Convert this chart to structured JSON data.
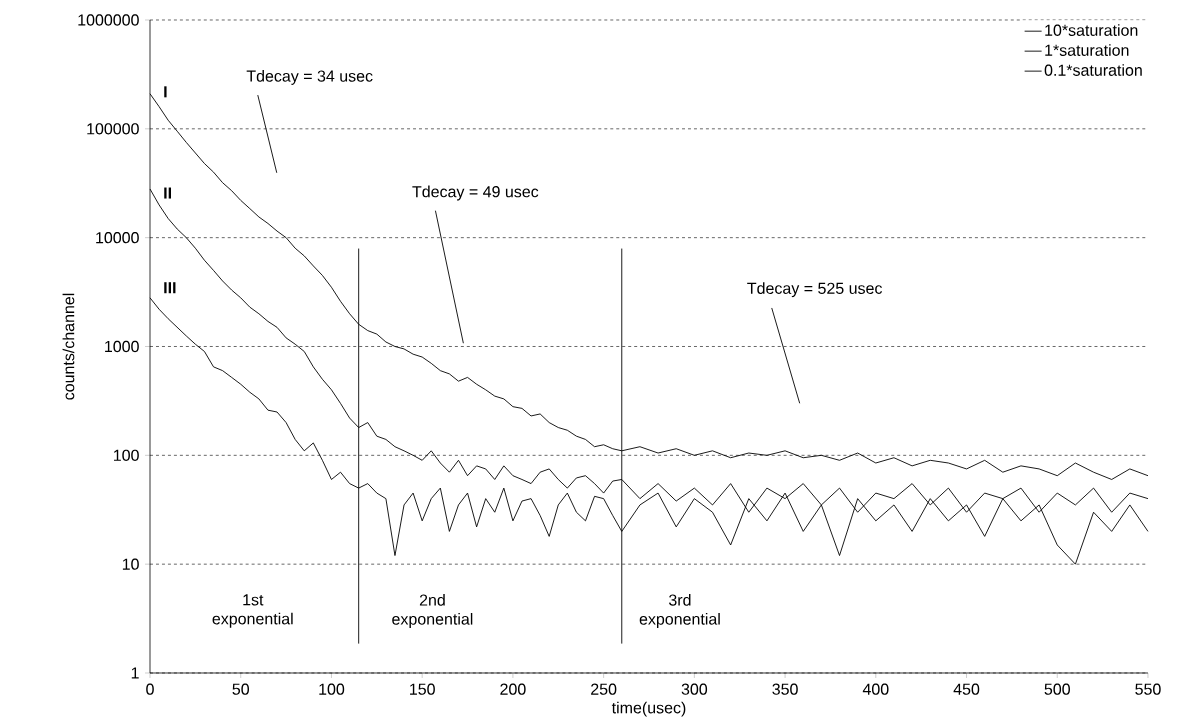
{
  "chart_data": {
    "type": "line",
    "xlabel": "time(usec)",
    "ylabel": "counts/channel",
    "log": "y",
    "grid": "y",
    "legend": "top right",
    "marker": "none",
    "line_style": "solid",
    "xlim": [
      0,
      550
    ],
    "xticks": [
      0,
      50,
      100,
      150,
      200,
      250,
      300,
      350,
      400,
      450,
      500,
      550
    ],
    "ylim": [
      1,
      1000000
    ],
    "yticks": [
      1,
      10,
      100,
      1000,
      10000,
      100000,
      1000000
    ],
    "x": [
      0,
      5,
      10,
      15,
      20,
      25,
      30,
      35,
      40,
      45,
      50,
      55,
      60,
      65,
      70,
      75,
      80,
      85,
      90,
      95,
      100,
      105,
      110,
      115,
      120,
      125,
      130,
      135,
      140,
      145,
      150,
      155,
      160,
      165,
      170,
      175,
      180,
      185,
      190,
      195,
      200,
      205,
      210,
      215,
      220,
      225,
      230,
      235,
      240,
      245,
      250,
      255,
      260,
      270,
      280,
      290,
      300,
      310,
      320,
      330,
      340,
      350,
      360,
      370,
      380,
      390,
      400,
      410,
      420,
      430,
      440,
      450,
      460,
      470,
      480,
      490,
      500,
      510,
      520,
      530,
      540,
      550
    ],
    "series": [
      {
        "name": "10*saturation",
        "color": "#000000",
        "values": [
          210000,
          160000,
          120000,
          95000,
          75000,
          60000,
          48000,
          40000,
          32000,
          27000,
          22000,
          18500,
          15500,
          13500,
          11500,
          10000,
          8000,
          6800,
          5500,
          4500,
          3500,
          2600,
          2000,
          1600,
          1400,
          1300,
          1100,
          1000,
          950,
          850,
          800,
          700,
          600,
          560,
          480,
          520,
          450,
          400,
          350,
          330,
          280,
          270,
          230,
          240,
          200,
          180,
          170,
          150,
          140,
          120,
          125,
          115,
          110,
          120,
          105,
          115,
          100,
          110,
          95,
          105,
          100,
          110,
          95,
          100,
          90,
          105,
          85,
          95,
          80,
          90,
          85,
          75,
          90,
          70,
          80,
          75,
          65,
          85,
          70,
          60,
          75,
          65
        ]
      },
      {
        "name": "1*saturation",
        "color": "#000000",
        "values": [
          28000,
          20000,
          15000,
          12000,
          10000,
          8000,
          6200,
          5000,
          4000,
          3300,
          2800,
          2300,
          2000,
          1700,
          1500,
          1200,
          1050,
          900,
          650,
          500,
          400,
          300,
          220,
          180,
          200,
          150,
          140,
          120,
          110,
          100,
          90,
          110,
          85,
          70,
          90,
          65,
          80,
          75,
          60,
          80,
          65,
          60,
          55,
          70,
          75,
          60,
          50,
          62,
          65,
          55,
          45,
          58,
          60,
          40,
          55,
          38,
          50,
          35,
          55,
          30,
          50,
          40,
          55,
          35,
          50,
          30,
          45,
          40,
          55,
          35,
          50,
          30,
          45,
          40,
          50,
          30,
          45,
          35,
          50,
          30,
          45,
          40
        ]
      },
      {
        "name": "0.1*saturation",
        "color": "#000000",
        "values": [
          2800,
          2200,
          1800,
          1500,
          1250,
          1050,
          900,
          650,
          600,
          520,
          450,
          380,
          330,
          260,
          250,
          200,
          140,
          110,
          130,
          90,
          60,
          70,
          55,
          50,
          55,
          45,
          40,
          12,
          35,
          45,
          25,
          40,
          50,
          20,
          35,
          45,
          22,
          40,
          30,
          50,
          25,
          38,
          40,
          28,
          18,
          35,
          45,
          30,
          25,
          42,
          40,
          28,
          20,
          35,
          45,
          22,
          40,
          30,
          15,
          40,
          25,
          45,
          20,
          35,
          12,
          40,
          25,
          35,
          20,
          40,
          25,
          35,
          18,
          40,
          25,
          35,
          15,
          10,
          30,
          20,
          35,
          20
        ]
      }
    ],
    "ref_lines": [
      {
        "axis": "x",
        "value": 115,
        "color": "#000000"
      },
      {
        "axis": "x",
        "value": 260,
        "color": "#000000"
      }
    ],
    "annotations": [
      "Tdecay = 34 usec",
      "Tdecay = 49 usec",
      "Tdecay = 525 usec",
      "I",
      "II",
      "III",
      "1st exponential",
      "2nd exponential",
      "3rd exponential"
    ]
  }
}
